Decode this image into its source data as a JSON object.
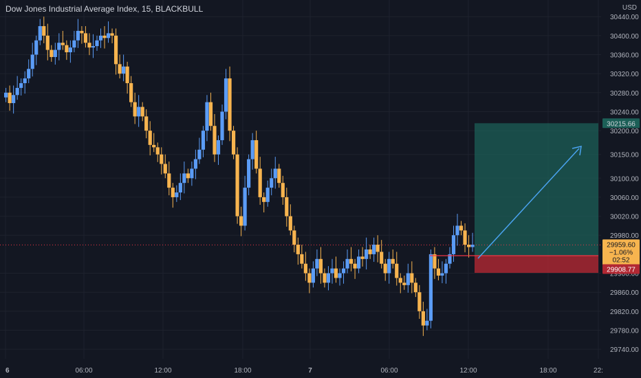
{
  "header": {
    "title": "Dow Jones Industrial Average Index, 15, BLACKBULL",
    "currency": "USD"
  },
  "colors": {
    "background": "#131722",
    "up": "#5b9cf6",
    "down": "#f7b44f",
    "target_zone": "#1c5f57",
    "stop_zone": "#b22833",
    "entry_line": "#f23645",
    "arrow": "#4aa3f0"
  },
  "price_axis": {
    "ticks": [
      "30440.00",
      "30400.00",
      "30360.00",
      "30320.00",
      "30280.00",
      "30240.00",
      "30200.00",
      "30150.00",
      "30100.00",
      "30060.00",
      "30020.00",
      "29980.00",
      "29900.00",
      "29860.00",
      "29820.00",
      "29780.00",
      "29740.00"
    ]
  },
  "time_axis": {
    "ticks": [
      "6",
      "06:00",
      "12:00",
      "18:00",
      "7",
      "06:00",
      "12:00",
      "18:00",
      "22:"
    ]
  },
  "price_labels": {
    "target": "30215.66",
    "current": "29959.60",
    "change": "−1.06%",
    "countdown": "02:52",
    "stop": "29908.77"
  },
  "chart_data": {
    "type": "candlestick",
    "title": "Dow Jones Industrial Average Index, 15, BLACKBULL",
    "ylabel": "USD",
    "ylim": [
      29720,
      30475
    ],
    "grid": true,
    "note_zones": {
      "target": 30215.66,
      "entry": 29937,
      "stop": 29908.77,
      "current": 29959.6
    },
    "closes": [
      30280,
      30258,
      30275,
      30290,
      30300,
      30310,
      30330,
      30360,
      30390,
      30420,
      30400,
      30370,
      30355,
      30370,
      30385,
      30380,
      30365,
      30375,
      30390,
      30410,
      30405,
      30385,
      30375,
      30378,
      30390,
      30400,
      30395,
      30405,
      30400,
      30340,
      30320,
      30335,
      30300,
      30260,
      30230,
      30250,
      30230,
      30200,
      30170,
      30165,
      30150,
      30130,
      30110,
      30080,
      30060,
      30070,
      30090,
      30110,
      30100,
      30120,
      30140,
      30160,
      30200,
      30260,
      30210,
      30150,
      30180,
      30240,
      30310,
      30200,
      30150,
      30020,
      30000,
      30080,
      30140,
      30180,
      30120,
      30060,
      30050,
      30080,
      30100,
      30120,
      30090,
      30060,
      30020,
      29990,
      29960,
      29940,
      29920,
      29900,
      29880,
      29910,
      29930,
      29900,
      29880,
      29900,
      29910,
      29890,
      29900,
      29910,
      29930,
      29920,
      29910,
      29935,
      29930,
      29950,
      29940,
      29960,
      29945,
      29920,
      29900,
      29930,
      29920,
      29890,
      29880,
      29875,
      29900,
      29880,
      29860,
      29820,
      29790,
      29800,
      29940,
      29910,
      29895,
      29900,
      29920,
      29940,
      29980,
      30000,
      29990,
      29960,
      29955,
      29960
    ],
    "opens": [
      30270,
      30280,
      30258,
      30275,
      30290,
      30300,
      30310,
      30330,
      30360,
      30390,
      30420,
      30400,
      30370,
      30355,
      30370,
      30385,
      30380,
      30365,
      30375,
      30390,
      30410,
      30405,
      30385,
      30375,
      30378,
      30390,
      30400,
      30395,
      30405,
      30400,
      30340,
      30320,
      30335,
      30300,
      30260,
      30230,
      30250,
      30230,
      30200,
      30170,
      30165,
      30150,
      30130,
      30110,
      30080,
      30060,
      30070,
      30090,
      30110,
      30100,
      30120,
      30140,
      30160,
      30200,
      30260,
      30210,
      30150,
      30180,
      30240,
      30310,
      30200,
      30150,
      30020,
      30000,
      30080,
      30140,
      30180,
      30120,
      30060,
      30050,
      30080,
      30100,
      30120,
      30090,
      30060,
      30020,
      29990,
      29960,
      29940,
      29920,
      29900,
      29880,
      29910,
      29930,
      29900,
      29880,
      29900,
      29910,
      29890,
      29900,
      29910,
      29930,
      29920,
      29910,
      29935,
      29930,
      29950,
      29940,
      29960,
      29945,
      29920,
      29900,
      29930,
      29920,
      29890,
      29880,
      29875,
      29900,
      29880,
      29860,
      29820,
      29790,
      29800,
      29940,
      29910,
      29895,
      29900,
      29920,
      29940,
      29980,
      30000,
      29990,
      29960,
      29955
    ]
  }
}
